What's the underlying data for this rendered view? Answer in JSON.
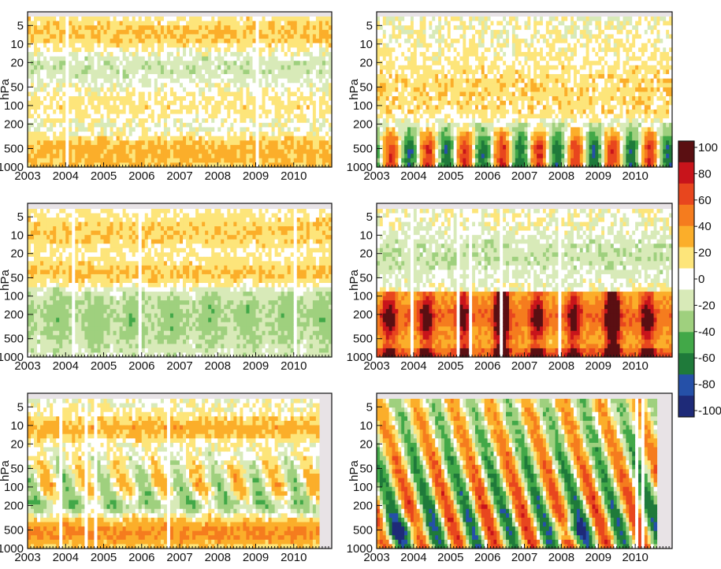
{
  "chart_data": [
    {
      "type": "heatmap",
      "title": "",
      "ylabel": "hPa",
      "xlabel": "",
      "x_tick_labels": [
        "2003",
        "2004",
        "2005",
        "2006",
        "2007",
        "2008",
        "2009",
        "2010"
      ],
      "y_tick_labels": [
        "5",
        "10",
        "20",
        "50",
        "100",
        "200",
        "500",
        "1000"
      ],
      "y_scale": "log",
      "ylim": [
        1000,
        3
      ],
      "xlim": [
        2003,
        2011
      ],
      "value_range": [
        -100,
        100
      ],
      "pattern": "mostly weak values; positive (yellow to orange) bands near 5-10 hPa and 300-1000 hPa, negative (light green) near 20 hPa and 200-300 hPa"
    },
    {
      "type": "heatmap",
      "title": "",
      "ylabel": "hPa",
      "xlabel": "",
      "x_tick_labels": [
        "2003",
        "2004",
        "2005",
        "2006",
        "2007",
        "2008",
        "2009",
        "2010"
      ],
      "y_tick_labels": [
        "5",
        "10",
        "20",
        "50",
        "100",
        "200",
        "500",
        "1000"
      ],
      "y_scale": "log",
      "ylim": [
        1000,
        3
      ],
      "xlim": [
        2003,
        2011
      ],
      "value_range": [
        -100,
        100
      ],
      "pattern": "strong annual cycle below 200 hPa alternating blue (about -80) and orange (about +60); weak yellow aloft"
    },
    {
      "type": "heatmap",
      "title": "",
      "ylabel": "hPa",
      "xlabel": "",
      "x_tick_labels": [
        "2003",
        "2004",
        "2005",
        "2006",
        "2007",
        "2008",
        "2009",
        "2010"
      ],
      "y_tick_labels": [
        "5",
        "10",
        "20",
        "50",
        "100",
        "200",
        "500",
        "1000"
      ],
      "y_scale": "log",
      "ylim": [
        1000,
        3
      ],
      "xlim": [
        2003,
        2011
      ],
      "value_range": [
        -100,
        100
      ],
      "pattern": "negative green band 80-1000 hPa, positive yellow band 30-70 hPa and near 10 hPa; white data gaps in 2005, 2007 and 2008"
    },
    {
      "type": "heatmap",
      "title": "",
      "ylabel": "hPa",
      "xlabel": "",
      "x_tick_labels": [
        "2003",
        "2004",
        "2005",
        "2006",
        "2007",
        "2008",
        "2009",
        "2010"
      ],
      "y_tick_labels": [
        "5",
        "10",
        "20",
        "50",
        "100",
        "200",
        "500",
        "1000"
      ],
      "y_scale": "log",
      "ylim": [
        1000,
        3
      ],
      "xlim": [
        2003,
        2011
      ],
      "value_range": [
        -100,
        100
      ],
      "pattern": "large positive values (orange to black, above 100) below 100 hPa with peaks in 2006 and 2009; negative green near 20 hPa"
    },
    {
      "type": "heatmap",
      "title": "",
      "ylabel": "hPa",
      "xlabel": "",
      "x_tick_labels": [
        "2003",
        "2004",
        "2005",
        "2006",
        "2007",
        "2008",
        "2009",
        "2010"
      ],
      "y_tick_labels": [
        "5",
        "10",
        "20",
        "50",
        "100",
        "200",
        "500",
        "1000"
      ],
      "y_scale": "log",
      "ylim": [
        1000,
        3
      ],
      "xlim": [
        2003,
        2011
      ],
      "value_range": [
        -100,
        100
      ],
      "pattern": "yellow band near 8-15 hPa, annual descending positive streaks 40-150 hPa, green band near 200 hPa, orange below 400 hPa"
    },
    {
      "type": "heatmap",
      "title": "",
      "ylabel": "hPa",
      "xlabel": "",
      "x_tick_labels": [
        "2003",
        "2004",
        "2005",
        "2006",
        "2007",
        "2008",
        "2009",
        "2010"
      ],
      "y_tick_labels": [
        "5",
        "10",
        "20",
        "50",
        "100",
        "200",
        "500",
        "1000"
      ],
      "y_scale": "log",
      "ylim": [
        1000,
        3
      ],
      "xlim": [
        2003,
        2011
      ],
      "value_range": [
        -100,
        100
      ],
      "pattern": "annual descending alternating positive and negative streaks through the column, blue near 500 hPa in 2003-2004 and 2008"
    }
  ],
  "colorbar": {
    "tick_labels": [
      "100",
      "80",
      "60",
      "40",
      "20",
      "0",
      "-20",
      "-40",
      "-60",
      "-80",
      "-100"
    ],
    "colors": [
      "#5a0f12",
      "#c8141b",
      "#e8461e",
      "#f57c1e",
      "#fbae2a",
      "#fde57a",
      "#ffffff",
      "#d8eab8",
      "#9fd07e",
      "#42a848",
      "#1f7a3a",
      "#2550a8",
      "#1e2a78"
    ]
  },
  "colors": {
    "panel_background": "#e8e3e6",
    "frame": "#111111"
  }
}
